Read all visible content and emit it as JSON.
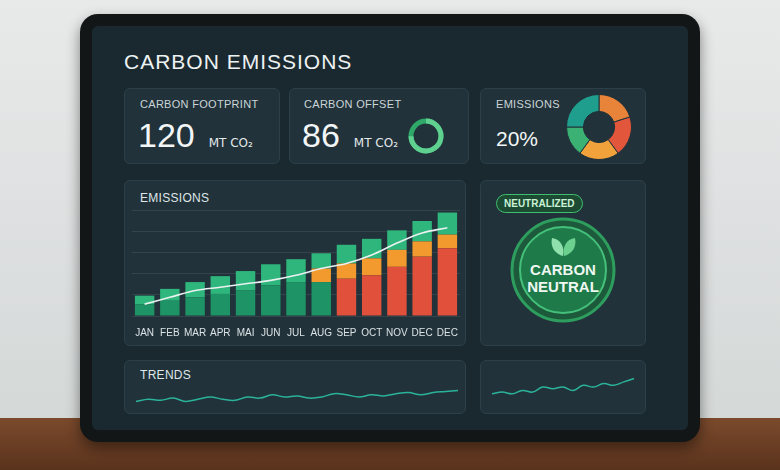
{
  "title": "CARBON EMISSIONS",
  "cards": [
    {
      "label": "CARBON FOOTPRINT",
      "value": "120",
      "unit": "MT CO₂"
    },
    {
      "label": "CARBON OFFSET",
      "value": "86",
      "unit": "MT CO₂"
    },
    {
      "label": "EMISSIONS",
      "value": "20%"
    }
  ],
  "badge": "NEUTRALIZED",
  "seal": "CARBON NEUTRAL",
  "chart_data": [
    {
      "type": "bar",
      "title": "EMISSIONS",
      "categories": [
        "JAN",
        "FEB",
        "MAR",
        "APR",
        "MAI",
        "JUN",
        "JUL",
        "AUG",
        "SEP",
        "OCT",
        "NOV",
        "DEC",
        "DEC"
      ],
      "stacked": true,
      "grid": true,
      "tick_labels": "x",
      "ylim": [
        0,
        125
      ],
      "yticks": [
        0,
        25,
        50,
        75,
        100,
        125
      ],
      "series": [
        {
          "color": "#1e9466",
          "values": [
            14,
            18,
            22,
            26,
            30,
            36,
            40,
            40,
            0,
            0,
            0,
            0,
            0
          ]
        },
        {
          "color": "#e0503a",
          "values": [
            0,
            0,
            0,
            0,
            0,
            0,
            0,
            0,
            44,
            48,
            58,
            70,
            80
          ]
        },
        {
          "color": "#f29a2e",
          "values": [
            0,
            0,
            0,
            0,
            0,
            0,
            0,
            16,
            18,
            20,
            20,
            18,
            16
          ]
        },
        {
          "color": "#2fb67c",
          "values": [
            10,
            14,
            18,
            21,
            23,
            25,
            27,
            18,
            22,
            23,
            23,
            24,
            26
          ]
        },
        {
          "type": "line",
          "color": "#e9f1f1",
          "values": [
            14,
            22,
            30,
            34,
            38,
            42,
            48,
            56,
            62,
            72,
            86,
            98,
            104
          ]
        }
      ]
    },
    {
      "type": "doughnut",
      "values": [
        20,
        20,
        20,
        15,
        25
      ],
      "colors": [
        "#e8833a",
        "#e2563c",
        "#f2a23a",
        "#3bb273",
        "#1f9e8e"
      ]
    },
    {
      "type": "line",
      "title": "TRENDS",
      "tick_labels": false,
      "grid": false,
      "categories": [
        null,
        null,
        null,
        null,
        null,
        null,
        null,
        null,
        null,
        null,
        null,
        null,
        null,
        null,
        null,
        null,
        null,
        null,
        null,
        null,
        null,
        null,
        null,
        null,
        null,
        null,
        null
      ],
      "ylim": [
        0,
        10
      ],
      "series": [
        {
          "color": "#2bb39a",
          "values": [
            3,
            4,
            3.5,
            4.5,
            3,
            4,
            5,
            4,
            3.5,
            5,
            4.5,
            6,
            5,
            5.5,
            4.5,
            5,
            6.5,
            6,
            5,
            6,
            5.5,
            6.5,
            7,
            6,
            7,
            7.5,
            8
          ]
        }
      ]
    },
    {
      "type": "line",
      "tick_labels": false,
      "grid": false,
      "categories": [
        null,
        null,
        null,
        null,
        null,
        null,
        null,
        null,
        null,
        null,
        null,
        null,
        null,
        null,
        null
      ],
      "ylim": [
        0,
        10
      ],
      "series": [
        {
          "color": "#2bb39a",
          "values": [
            3,
            3.5,
            3,
            4,
            3.5,
            5,
            4.5,
            5,
            4,
            5.5,
            5,
            6,
            5.5,
            6.5,
            7.5
          ]
        }
      ]
    }
  ]
}
